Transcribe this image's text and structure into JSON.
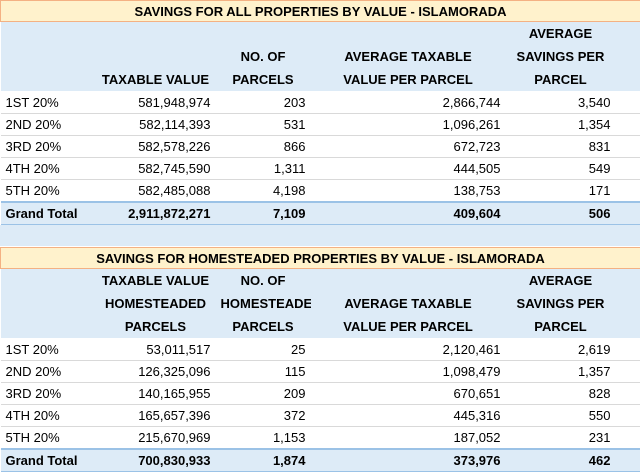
{
  "tables": [
    {
      "title": "SAVINGS FOR ALL PROPERTIES BY VALUE - ISLAMORADA",
      "headers": [
        [
          "TAXABLE VALUE"
        ],
        [
          "NO. OF",
          "PARCELS"
        ],
        [
          "AVERAGE TAXABLE",
          "VALUE PER PARCEL"
        ],
        [
          "AVERAGE",
          "SAVINGS PER",
          "PARCEL"
        ]
      ],
      "rows": [
        [
          "1ST 20%",
          "581,948,974",
          "203",
          "2,866,744",
          "3,540"
        ],
        [
          "2ND 20%",
          "582,114,393",
          "531",
          "1,096,261",
          "1,354"
        ],
        [
          "3RD 20%",
          "582,578,226",
          "866",
          "672,723",
          "831"
        ],
        [
          "4TH 20%",
          "582,745,590",
          "1,311",
          "444,505",
          "549"
        ],
        [
          "5TH 20%",
          "582,485,088",
          "4,198",
          "138,753",
          "171"
        ]
      ],
      "total": [
        "Grand Total",
        "2,911,872,271",
        "7,109",
        "409,604",
        "506"
      ]
    },
    {
      "title": "SAVINGS FOR HOMESTEADED PROPERTIES BY VALUE - ISLAMORADA",
      "headers": [
        [
          "TAXABLE VALUE",
          "HOMESTEADED",
          "PARCELS"
        ],
        [
          "NO. OF",
          "HOMESTEADED",
          "PARCELS"
        ],
        [
          "AVERAGE TAXABLE",
          "VALUE PER PARCEL"
        ],
        [
          "AVERAGE",
          "SAVINGS PER",
          "PARCEL"
        ]
      ],
      "rows": [
        [
          "1ST 20%",
          "53,011,517",
          "25",
          "2,120,461",
          "2,619"
        ],
        [
          "2ND 20%",
          "126,325,096",
          "115",
          "1,098,479",
          "1,357"
        ],
        [
          "3RD 20%",
          "140,165,955",
          "209",
          "670,651",
          "828"
        ],
        [
          "4TH 20%",
          "165,657,396",
          "372",
          "445,316",
          "550"
        ],
        [
          "5TH 20%",
          "215,670,969",
          "1,153",
          "187,052",
          "231"
        ]
      ],
      "total": [
        "Grand Total",
        "700,830,933",
        "1,874",
        "373,976",
        "462"
      ]
    }
  ]
}
